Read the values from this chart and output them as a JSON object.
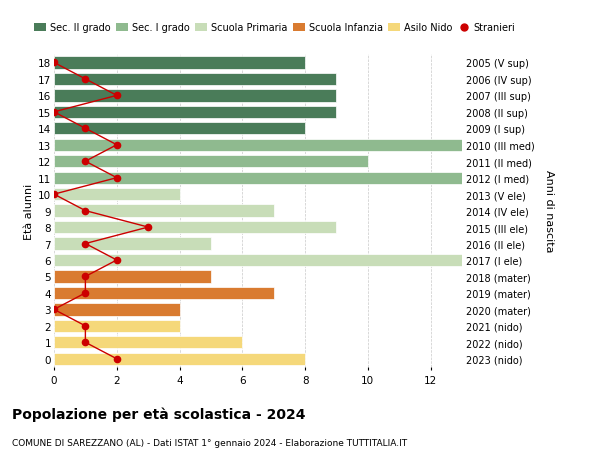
{
  "ages_ordered": [
    0,
    1,
    2,
    3,
    4,
    5,
    6,
    7,
    8,
    9,
    10,
    11,
    12,
    13,
    14,
    15,
    16,
    17,
    18
  ],
  "bar_values": [
    8,
    6,
    4,
    4,
    7,
    5,
    13,
    5,
    9,
    7,
    4,
    13,
    10,
    13,
    8,
    9,
    9,
    9,
    8
  ],
  "bar_colors": [
    "#f5d87a",
    "#f5d87a",
    "#f5d87a",
    "#d97b30",
    "#d97b30",
    "#d97b30",
    "#c8ddb8",
    "#c8ddb8",
    "#c8ddb8",
    "#c8ddb8",
    "#c8ddb8",
    "#8fba8f",
    "#8fba8f",
    "#8fba8f",
    "#4a7c59",
    "#4a7c59",
    "#4a7c59",
    "#4a7c59",
    "#4a7c59"
  ],
  "stranieri": [
    2,
    1,
    1,
    0,
    1,
    1,
    2,
    1,
    3,
    1,
    0,
    2,
    1,
    2,
    1,
    0,
    2,
    1,
    0
  ],
  "right_labels_by_age": [
    "2023 (nido)",
    "2022 (nido)",
    "2021 (nido)",
    "2020 (mater)",
    "2019 (mater)",
    "2018 (mater)",
    "2017 (I ele)",
    "2016 (II ele)",
    "2015 (III ele)",
    "2014 (IV ele)",
    "2013 (V ele)",
    "2012 (I med)",
    "2011 (II med)",
    "2010 (III med)",
    "2009 (I sup)",
    "2008 (II sup)",
    "2007 (III sup)",
    "2006 (IV sup)",
    "2005 (V sup)"
  ],
  "legend_labels": [
    "Sec. II grado",
    "Sec. I grado",
    "Scuola Primaria",
    "Scuola Infanzia",
    "Asilo Nido",
    "Stranieri"
  ],
  "legend_colors": [
    "#4a7c59",
    "#8fba8f",
    "#c8ddb8",
    "#d97b30",
    "#f5d87a",
    "#cc0000"
  ],
  "title": "Popolazione per età scolastica - 2024",
  "subtitle": "COMUNE DI SAREZZANO (AL) - Dati ISTAT 1° gennaio 2024 - Elaborazione TUTTITALIA.IT",
  "ylabel_left": "Età alunni",
  "ylabel_right": "Anni di nascita",
  "xlim": [
    0,
    13
  ],
  "background_color": "#ffffff",
  "bar_height": 0.75
}
